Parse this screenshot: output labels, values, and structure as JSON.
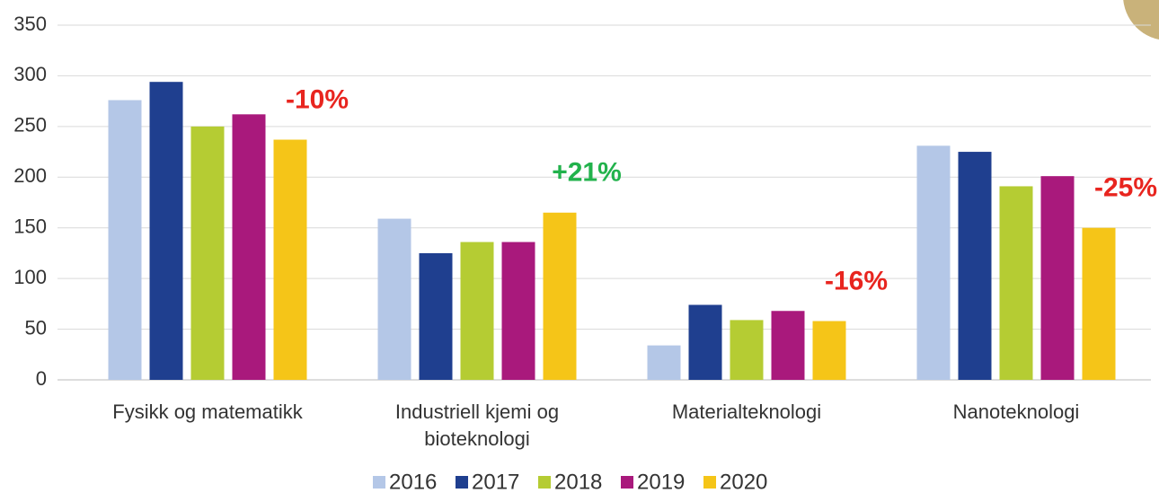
{
  "chart_data": {
    "type": "bar",
    "categories": [
      "Fysikk og matematikk",
      "Industriell kjemi og bioteknologi",
      "Materialteknologi",
      "Nanoteknologi"
    ],
    "series": [
      {
        "name": "2016",
        "color": "#b4c7e7",
        "values": [
          276,
          159,
          34,
          231
        ]
      },
      {
        "name": "2017",
        "color": "#1f3f8f",
        "values": [
          294,
          125,
          74,
          225
        ]
      },
      {
        "name": "2018",
        "color": "#b5cc33",
        "values": [
          250,
          136,
          59,
          191
        ]
      },
      {
        "name": "2019",
        "color": "#a9197c",
        "values": [
          262,
          136,
          68,
          201
        ]
      },
      {
        "name": "2020",
        "color": "#f5c518",
        "values": [
          237,
          165,
          58,
          150
        ]
      }
    ],
    "annotations": [
      "-10%",
      "+21%",
      "-16%",
      "-25%"
    ],
    "annotation_colors": [
      "#e8251f",
      "#22b24c",
      "#e8251f",
      "#e8251f"
    ],
    "ylim": [
      0,
      350
    ],
    "yticks": [
      0,
      50,
      100,
      150,
      200,
      250,
      300,
      350
    ],
    "grid": true,
    "legend": "bottom"
  }
}
